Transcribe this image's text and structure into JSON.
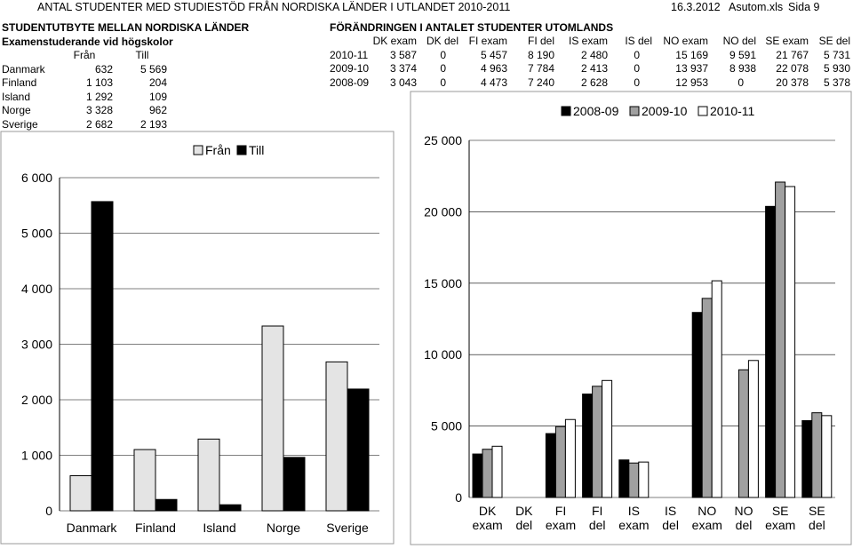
{
  "header": {
    "title": "ANTAL STUDENTER MED STUDIESTÖD FRÅN NORDISKA LÄNDER I UTLANDET 2010-2011",
    "date": "16.3.2012",
    "file": "Asutom.xls",
    "page": "Sida 9"
  },
  "left": {
    "title": "STUDENTUTBYTE MELLAN NORDISKA LÄNDER",
    "subtitle": "Examenstuderande vid högskolor",
    "col_headers": [
      "Från",
      "Till"
    ],
    "rows": [
      {
        "country": "Danmark",
        "fran": "632",
        "till": "5 569"
      },
      {
        "country": "Finland",
        "fran": "1 103",
        "till": "204"
      },
      {
        "country": "Island",
        "fran": "1 292",
        "till": "109"
      },
      {
        "country": "Norge",
        "fran": "3 328",
        "till": "962"
      },
      {
        "country": "Sverige",
        "fran": "2 682",
        "till": "2 193"
      }
    ]
  },
  "right": {
    "title": "FÖRÄNDRINGEN I ANTALET STUDENTER UTOMLANDS",
    "col_headers": [
      "DK exam",
      "DK del",
      "FI exam",
      "FI  del",
      "IS exam",
      "IS  del",
      "NO exam",
      "NO del",
      "SE exam",
      "SE del"
    ],
    "rows": [
      {
        "year": "2010-11",
        "values": [
          "3 587",
          "0",
          "5 457",
          "8 190",
          "2 480",
          "0",
          "15 169",
          "9 591",
          "21 767",
          "5 731"
        ]
      },
      {
        "year": "2009-10",
        "values": [
          "3 374",
          "0",
          "4 963",
          "7 784",
          "2 413",
          "0",
          "13 937",
          "8 938",
          "22 078",
          "5 930"
        ]
      },
      {
        "year": "2008-09",
        "values": [
          "3 043",
          "0",
          "4 473",
          "7 240",
          "2 628",
          "0",
          "12 953",
          "0",
          "20 378",
          "5 378"
        ]
      }
    ]
  },
  "colors": {
    "black": "#000000",
    "gray": "#a0a0a0",
    "light": "#e4e4e4",
    "white": "#ffffff"
  },
  "chart_data": [
    {
      "type": "bar",
      "categories": [
        "Danmark",
        "Finland",
        "Island",
        "Norge",
        "Sverige"
      ],
      "series": [
        {
          "name": "Från",
          "values": [
            632,
            1103,
            1292,
            3328,
            2682
          ],
          "color": "#e4e4e4"
        },
        {
          "name": "Till",
          "values": [
            5569,
            204,
            109,
            962,
            2193
          ],
          "color": "#000000"
        }
      ],
      "ylim": [
        0,
        6000
      ],
      "yticks": [
        0,
        1000,
        2000,
        3000,
        4000,
        5000,
        6000
      ],
      "ytick_labels": [
        "0",
        "1 000",
        "2 000",
        "3 000",
        "4 000",
        "5 000",
        "6 000"
      ],
      "grid": true,
      "legend": "top"
    },
    {
      "type": "bar",
      "categories": [
        "DK exam",
        "DK del",
        "FI exam",
        "FI  del",
        "IS exam",
        "IS  del",
        "NO exam",
        "NO del",
        "SE exam",
        "SE del"
      ],
      "series": [
        {
          "name": "2008-09",
          "values": [
            3043,
            0,
            4473,
            7240,
            2628,
            0,
            12953,
            0,
            20378,
            5378
          ],
          "color": "#000000"
        },
        {
          "name": "2009-10",
          "values": [
            3374,
            0,
            4963,
            7784,
            2413,
            0,
            13937,
            8938,
            22078,
            5930
          ],
          "color": "#a0a0a0"
        },
        {
          "name": "2010-11",
          "values": [
            3587,
            0,
            5457,
            8190,
            2480,
            0,
            15169,
            9591,
            21767,
            5731
          ],
          "color": "#ffffff"
        }
      ],
      "ylim": [
        0,
        25000
      ],
      "yticks": [
        0,
        5000,
        10000,
        15000,
        20000,
        25000
      ],
      "ytick_labels": [
        "0",
        "5 000",
        "10 000",
        "15 000",
        "20 000",
        "25 000"
      ],
      "grid": true,
      "legend": "top"
    }
  ]
}
